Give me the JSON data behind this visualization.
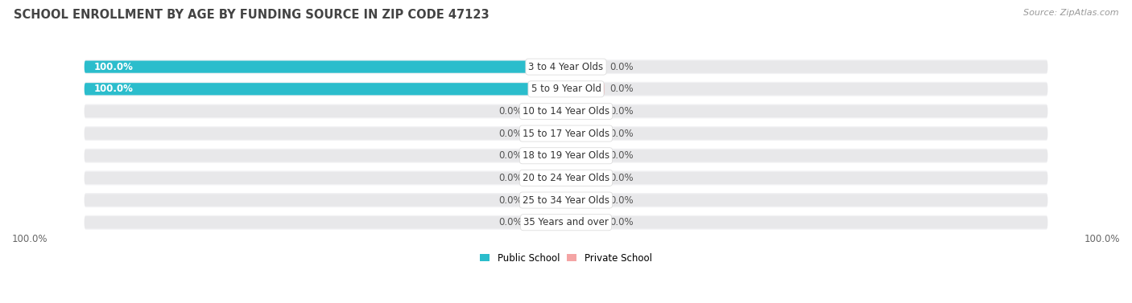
{
  "title": "SCHOOL ENROLLMENT BY AGE BY FUNDING SOURCE IN ZIP CODE 47123",
  "source": "Source: ZipAtlas.com",
  "categories": [
    "3 to 4 Year Olds",
    "5 to 9 Year Old",
    "10 to 14 Year Olds",
    "15 to 17 Year Olds",
    "18 to 19 Year Olds",
    "20 to 24 Year Olds",
    "25 to 34 Year Olds",
    "35 Years and over"
  ],
  "public_values": [
    100.0,
    100.0,
    0.0,
    0.0,
    0.0,
    0.0,
    0.0,
    0.0
  ],
  "private_values": [
    0.0,
    0.0,
    0.0,
    0.0,
    0.0,
    0.0,
    0.0,
    0.0
  ],
  "public_color": "#2BBDCC",
  "private_color": "#F4A4A4",
  "bar_bg_color": "#E8E8EA",
  "row_bg_color": "#F2F2F4",
  "label_bg_color": "#FFFFFF",
  "title_color": "#333333",
  "text_color": "#666666",
  "value_text_color": "#555555",
  "x_min": -100,
  "x_max": 100,
  "bottom_left_label": "100.0%",
  "bottom_right_label": "100.0%",
  "legend_public": "Public School",
  "legend_private": "Private School",
  "title_fontsize": 10.5,
  "label_fontsize": 8.5,
  "cat_fontsize": 8.5,
  "tick_fontsize": 8.5,
  "source_fontsize": 8
}
